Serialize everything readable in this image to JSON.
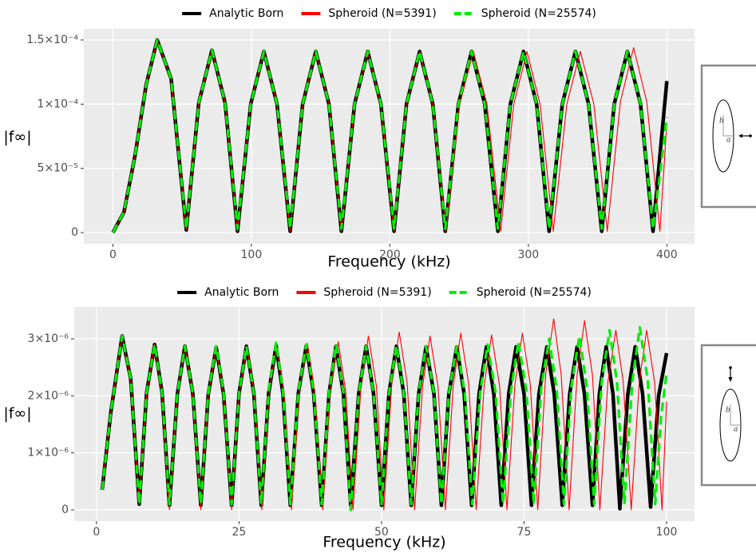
{
  "chart_data": [
    {
      "type": "line",
      "x_label": "Frequency (kHz)",
      "y_label": "|f∞|",
      "legend": "top",
      "grid": true,
      "xlim": [
        -21,
        420
      ],
      "xticks": [
        0,
        100,
        200,
        300,
        400
      ],
      "ylim": [
        -8.7e-06,
        0.0001587
      ],
      "yticks": [
        0,
        {
          "value": 5e-05,
          "label": "5×10⁻⁵"
        },
        {
          "value": 0.0001,
          "label": "1×10⁻⁴"
        },
        {
          "value": 0.00015,
          "label": "1.5×10⁻⁴"
        }
      ],
      "inset_labels": [
        "b",
        "a"
      ],
      "series": [
        {
          "name": "Analytic Born",
          "color": "#000000",
          "linestyle": "solid",
          "x": [
            0,
            8,
            16,
            24,
            32,
            42,
            53,
            62,
            71.5,
            81,
            90,
            99.5,
            109,
            118.5,
            128,
            137,
            146.5,
            156,
            165,
            174.5,
            184,
            193.5,
            203,
            212,
            221.5,
            231,
            240,
            249.5,
            259,
            268.5,
            278,
            287,
            296.5,
            306,
            315,
            324.5,
            334,
            343.5,
            353,
            362,
            371.5,
            381,
            390,
            395,
            400
          ],
          "values": [
            0,
            1.6e-05,
            6e-05,
            0.000115,
            0.00015,
            0.00012,
            2e-06,
            0.000101,
            0.000142,
            0.000101,
            1e-06,
            0.0001,
            0.000141,
            0.0001,
            1e-06,
            0.0001,
            0.000141,
            0.0001,
            1e-06,
            0.0001,
            0.000141,
            0.0001,
            1e-06,
            0.0001,
            0.000141,
            0.0001,
            1e-06,
            0.0001,
            0.000141,
            0.0001,
            1e-06,
            0.0001,
            0.000141,
            0.0001,
            1e-06,
            0.0001,
            0.000141,
            0.0001,
            1e-06,
            0.0001,
            0.000141,
            0.0001,
            1e-06,
            6e-05,
            0.000118
          ]
        },
        {
          "name": "Spheroid (N=5391)",
          "color": "#ff0000",
          "linestyle": "solid",
          "x": [
            0,
            8,
            16,
            24,
            32,
            42,
            53,
            62,
            71.5,
            81,
            90,
            99.5,
            109,
            118.5,
            128,
            137,
            146.5,
            156,
            165,
            174.5,
            184,
            193.5,
            203,
            212,
            221.5,
            231,
            240.5,
            250.4,
            260.3,
            270.1,
            280,
            289.5,
            299,
            308.5,
            318,
            327.8,
            337.5,
            347.3,
            357,
            366.5,
            376,
            385.5,
            395,
            400
          ],
          "values": [
            0,
            1.6e-05,
            6e-05,
            0.000115,
            0.00015,
            0.00012,
            2e-06,
            0.000101,
            0.000142,
            0.000101,
            1e-06,
            0.0001,
            0.000141,
            0.0001,
            1e-06,
            0.0001,
            0.000141,
            0.0001,
            1e-06,
            0.0001,
            0.000141,
            0.0001,
            1e-06,
            0.0001,
            0.000141,
            0.0001,
            1e-06,
            0.0001,
            0.000141,
            0.0001,
            1e-06,
            0.0001,
            0.000141,
            0.0001,
            1e-06,
            0.0001,
            0.000141,
            0.0001,
            1e-06,
            0.000102,
            0.000144,
            0.000102,
            1e-06,
            8.5e-05
          ]
        },
        {
          "name": "Spheroid (N=25574)",
          "color": "#00ee00",
          "linestyle": "dashed",
          "x": [
            0,
            8,
            16,
            24,
            32,
            42,
            53,
            62,
            71.5,
            81,
            90,
            99.5,
            109,
            118.5,
            128,
            137,
            146.5,
            156,
            165,
            174.5,
            184,
            193.5,
            203,
            212,
            221.5,
            231,
            240,
            249.5,
            259,
            268.5,
            278,
            287,
            296.5,
            306,
            315,
            324.5,
            334,
            343.5,
            353,
            362,
            371.5,
            381,
            390,
            395,
            400
          ],
          "values": [
            0,
            1.6e-05,
            6e-05,
            0.000115,
            0.00015,
            0.00012,
            3e-06,
            0.000101,
            0.000142,
            0.000101,
            3e-06,
            0.0001,
            0.000141,
            0.0001,
            3e-06,
            0.0001,
            0.000141,
            0.0001,
            3e-06,
            0.0001,
            0.000141,
            0.0001,
            3e-06,
            0.0001,
            0.000141,
            0.0001,
            3e-06,
            0.0001,
            0.000141,
            0.0001,
            3e-06,
            0.0001,
            0.000141,
            0.0001,
            3e-06,
            0.0001,
            0.000141,
            0.0001,
            3e-06,
            0.0001,
            0.000141,
            0.0001,
            3e-06,
            4.5e-05,
            9e-05
          ]
        }
      ]
    },
    {
      "type": "line",
      "x_label": "Frequency (kHz)",
      "y_label": "|f∞|",
      "legend": "top",
      "grid": true,
      "xlim": [
        -3.9,
        104.9
      ],
      "xticks": [
        0,
        25,
        50,
        75,
        100
      ],
      "ylim": [
        -1.96e-07,
        3.56e-06
      ],
      "yticks": [
        0,
        {
          "value": 1e-06,
          "label": "1×10⁻⁶"
        },
        {
          "value": 2e-06,
          "label": "2×10⁻⁶"
        },
        {
          "value": 3e-06,
          "label": "3×10⁻⁶"
        }
      ],
      "inset_labels": [
        "b",
        "a"
      ],
      "series": [
        {
          "name": "Analytic Born",
          "color": "#000000",
          "linestyle": "solid",
          "x": [
            1,
            2.5,
            4.5,
            6,
            7.5,
            8.8,
            10.2,
            11.5,
            12.8,
            14.2,
            15.5,
            16.9,
            18.3,
            19.6,
            21,
            22.3,
            23.7,
            25,
            26.3,
            27.6,
            28.9,
            30.2,
            31.5,
            32.7,
            34,
            35.4,
            36.8,
            38.1,
            39.5,
            40.8,
            42,
            43.3,
            44.6,
            46,
            47.3,
            48.6,
            50,
            51.3,
            52.6,
            53.9,
            55.2,
            56.5,
            57.8,
            59.2,
            60.5,
            61.8,
            63.2,
            64.5,
            65.8,
            67.1,
            68.4,
            69.7,
            71,
            72.3,
            73.6,
            75,
            76.3,
            77.6,
            79,
            80.3,
            81.7,
            83,
            84.3,
            85.6,
            87,
            88.2,
            89.4,
            90.6,
            91.8,
            93.2,
            94.5,
            95.8,
            97.2,
            98.6,
            100
          ],
          "values": [
            3.5e-07,
            1.7e-06,
            3.05e-06,
            2.3e-06,
            1e-07,
            2.06e-06,
            2.9e-06,
            2.06e-06,
            8e-08,
            2.04e-06,
            2.87e-06,
            2.04e-06,
            8e-08,
            2.02e-06,
            2.85e-06,
            2.02e-06,
            8e-08,
            2.04e-06,
            2.87e-06,
            2.04e-06,
            8e-08,
            2.04e-06,
            2.88e-06,
            2.04e-06,
            8e-08,
            2.04e-06,
            2.88e-06,
            2.04e-06,
            8e-08,
            2.04e-06,
            2.87e-06,
            2.04e-06,
            8e-08,
            2.04e-06,
            2.87e-06,
            2.04e-06,
            8e-08,
            2.04e-06,
            2.87e-06,
            2.04e-06,
            8e-08,
            2.03e-06,
            2.86e-06,
            2.03e-06,
            8e-08,
            2.03e-06,
            2.86e-06,
            2.03e-06,
            8e-08,
            2.03e-06,
            2.86e-06,
            2.03e-06,
            8e-08,
            2.03e-06,
            2.86e-06,
            2.03e-06,
            8e-08,
            2.03e-06,
            2.86e-06,
            2.03e-06,
            8e-08,
            2.03e-06,
            2.86e-06,
            2.03e-06,
            8e-08,
            2.03e-06,
            2.86e-06,
            2.03e-06,
            2e-08,
            2.03e-06,
            2.86e-06,
            2.03e-06,
            5e-08,
            2e-06,
            2.75e-06
          ]
        },
        {
          "name": "Spheroid (N=5391)",
          "color": "#ff0000",
          "linestyle": "solid",
          "x": [
            1,
            2.5,
            4.5,
            6,
            7.5,
            8.8,
            10.2,
            11.5,
            12.8,
            14.2,
            15.5,
            16.9,
            18.3,
            19.6,
            21,
            22.3,
            23.7,
            25,
            26.4,
            27.7,
            29,
            30.3,
            31.6,
            32.9,
            34.2,
            35.6,
            37,
            38.3,
            39.7,
            41,
            42.4,
            43.7,
            45,
            46.4,
            47.7,
            49.1,
            50.4,
            51.8,
            53.1,
            54.5,
            55.8,
            57.2,
            58.5,
            59.9,
            61.2,
            62.6,
            63.9,
            65.3,
            66.6,
            68,
            69.3,
            70.7,
            72,
            73.4,
            74.7,
            76.1,
            77.4,
            78.8,
            80.2,
            81.5,
            82.9,
            84.3,
            85.6,
            87,
            88.3,
            89.7,
            91.1,
            92.4,
            93.8,
            95.2,
            96.5,
            97.9,
            99.2,
            100
          ],
          "values": [
            3.5e-07,
            1.7e-06,
            3.05e-06,
            2.3e-06,
            1e-07,
            2.06e-06,
            2.9e-06,
            2.06e-06,
            0,
            2.04e-06,
            2.87e-06,
            2.04e-06,
            0,
            2.02e-06,
            2.85e-06,
            2.02e-06,
            0,
            2.04e-06,
            2.87e-06,
            2.04e-06,
            0,
            2.06e-06,
            2.9e-06,
            2.06e-06,
            0,
            2.07e-06,
            2.92e-06,
            2.07e-06,
            0,
            2.09e-06,
            2.95e-06,
            2.09e-06,
            0,
            2.17e-06,
            3.05e-06,
            2.17e-06,
            0,
            2.22e-06,
            3.12e-06,
            2.22e-06,
            0,
            2.17e-06,
            3.05e-06,
            2.17e-06,
            0,
            2.2e-06,
            3.1e-06,
            2.2e-06,
            0,
            2.18e-06,
            3.07e-06,
            2.18e-06,
            0,
            2.2e-06,
            3.1e-06,
            2.2e-06,
            0,
            2.38e-06,
            3.35e-06,
            2.38e-06,
            0,
            2.36e-06,
            3.32e-06,
            2.36e-06,
            0,
            2.24e-06,
            3.15e-06,
            2.24e-06,
            0,
            2.24e-06,
            3.15e-06,
            2.24e-06,
            0,
            1.9e-06
          ]
        },
        {
          "name": "Spheroid (N=25574)",
          "color": "#00ee00",
          "linestyle": "dashed",
          "x": [
            1,
            2.5,
            4.5,
            6,
            7.5,
            8.8,
            10.2,
            11.5,
            12.8,
            14.2,
            15.5,
            16.9,
            18.3,
            19.6,
            21,
            22.3,
            23.7,
            25,
            26.3,
            27.6,
            28.9,
            30.2,
            31.5,
            32.7,
            34,
            35.4,
            36.8,
            38.1,
            39.5,
            40.8,
            42,
            43.3,
            44.6,
            46,
            47.3,
            48.6,
            50,
            51.3,
            52.6,
            53.9,
            55.2,
            56.5,
            57.8,
            59.2,
            60.5,
            61.8,
            63.2,
            64.6,
            65.9,
            67.3,
            68.6,
            70,
            71.3,
            72.7,
            74,
            75.4,
            76.7,
            78,
            79.4,
            80.7,
            82,
            83.3,
            84.7,
            86,
            87.3,
            88.6,
            90,
            91.3,
            92.6,
            94,
            95.3,
            96.7,
            98,
            99,
            100
          ],
          "values": [
            3.5e-07,
            1.7e-06,
            3.05e-06,
            2.3e-06,
            1e-07,
            2.06e-06,
            2.9e-06,
            2.06e-06,
            1e-07,
            2.04e-06,
            2.87e-06,
            2.04e-06,
            1e-07,
            2.04e-06,
            2.87e-06,
            2.04e-06,
            1e-07,
            2.04e-06,
            2.87e-06,
            2.04e-06,
            1e-07,
            2.08e-06,
            2.93e-06,
            2.08e-06,
            1e-07,
            2.06e-06,
            2.9e-06,
            2.06e-06,
            1e-07,
            2.06e-06,
            2.9e-06,
            2.06e-06,
            0,
            2.04e-06,
            2.87e-06,
            2.04e-06,
            1e-07,
            2.04e-06,
            2.88e-06,
            2.04e-06,
            1e-07,
            2.04e-06,
            2.87e-06,
            2.04e-06,
            1e-07,
            2.04e-06,
            2.87e-06,
            2.04e-06,
            1e-07,
            2.06e-06,
            2.9e-06,
            2.06e-06,
            1e-07,
            2.09e-06,
            2.95e-06,
            2.09e-06,
            1e-07,
            2.13e-06,
            3e-06,
            2.13e-06,
            1e-07,
            2.17e-06,
            3.05e-06,
            2.17e-06,
            1e-07,
            2.24e-06,
            3.15e-06,
            2.24e-06,
            1e-07,
            2.27e-06,
            3.2e-06,
            2.27e-06,
            1e-07,
            1.6e-06,
            2.4e-06
          ]
        }
      ]
    }
  ]
}
